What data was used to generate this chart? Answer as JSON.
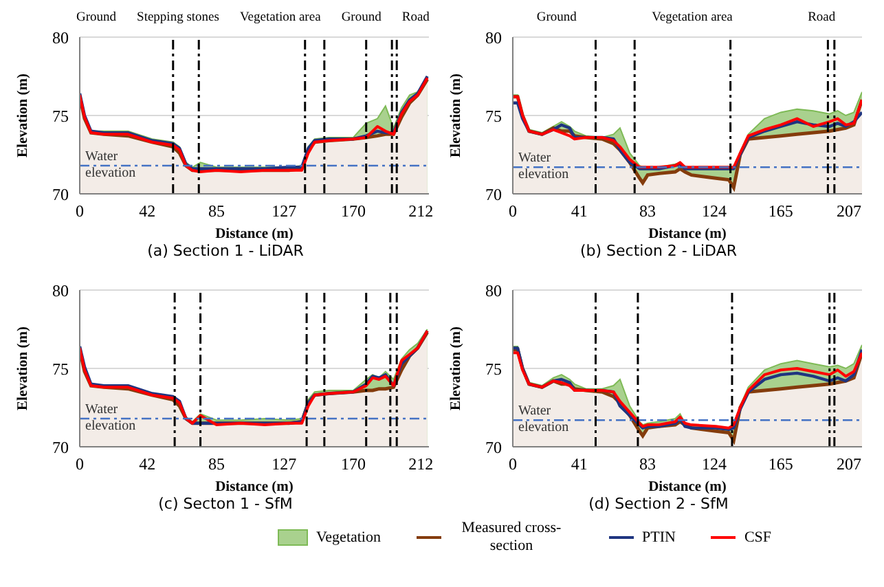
{
  "chart_data": [
    {
      "type": "line",
      "title": "(a) Section 1 - LiDAR",
      "xlabel": "Distance (m)",
      "ylabel": "Elevation (m)",
      "xlim": [
        0,
        217
      ],
      "xticks": [
        0,
        42,
        85,
        127,
        170,
        212
      ],
      "ylim": [
        70,
        80
      ],
      "yticks": [
        70,
        75,
        80
      ],
      "grid": "y",
      "x": [
        0,
        3,
        7,
        15,
        30,
        45,
        58,
        62,
        66,
        70,
        75,
        85,
        100,
        115,
        130,
        138,
        142,
        146,
        155,
        170,
        178,
        185,
        190,
        195,
        200,
        205,
        210,
        216
      ],
      "series": [
        {
          "type": "area",
          "color": "#a9d18e",
          "values": [
            76.4,
            75.0,
            74.0,
            74.0,
            74.0,
            73.5,
            73.3,
            73.0,
            72.0,
            71.7,
            72.0,
            71.7,
            71.7,
            71.7,
            71.7,
            71.8,
            73.0,
            73.5,
            73.6,
            73.6,
            74.5,
            74.8,
            75.6,
            74.2,
            75.5,
            76.3,
            76.5,
            77.5
          ]
        },
        {
          "type": "area",
          "color": "#843c0c",
          "values": [
            76.2,
            74.8,
            73.9,
            73.8,
            73.7,
            73.3,
            73.0,
            72.6,
            71.8,
            71.5,
            71.5,
            71.5,
            71.5,
            71.5,
            71.5,
            71.6,
            72.8,
            73.3,
            73.4,
            73.5,
            73.6,
            73.7,
            73.8,
            73.8,
            74.9,
            75.8,
            76.3,
            77.3
          ]
        },
        {
          "type": "line",
          "color": "#1f3580",
          "values": [
            76.4,
            75.0,
            74.0,
            73.9,
            73.9,
            73.4,
            73.2,
            72.9,
            71.9,
            71.6,
            71.6,
            71.6,
            71.6,
            71.6,
            71.7,
            71.7,
            72.9,
            73.4,
            73.5,
            73.5,
            73.7,
            74.0,
            73.9,
            73.9,
            75.2,
            76.0,
            76.4,
            77.5
          ]
        },
        {
          "type": "line",
          "color": "#ff0000",
          "values": [
            76.3,
            74.9,
            73.9,
            73.8,
            73.8,
            73.3,
            73.1,
            72.8,
            71.8,
            71.5,
            71.4,
            71.5,
            71.4,
            71.5,
            71.5,
            71.5,
            72.6,
            73.3,
            73.4,
            73.5,
            73.6,
            74.3,
            74.0,
            73.8,
            75.1,
            75.9,
            76.3,
            77.4
          ]
        }
      ],
      "ref_lines": [
        {
          "axis": "y",
          "value": 71.8,
          "label": "Water elevation",
          "color": "#4472c4",
          "line_style": "dashed"
        },
        {
          "axis": "x",
          "value": 58,
          "color": "#000000",
          "line_style": "dashed"
        },
        {
          "axis": "x",
          "value": 74,
          "color": "#000000",
          "line_style": "dashed"
        },
        {
          "axis": "x",
          "value": 140,
          "color": "#000000",
          "line_style": "dashed"
        },
        {
          "axis": "x",
          "value": 152,
          "color": "#000000",
          "line_style": "dashed"
        },
        {
          "axis": "x",
          "value": 178,
          "color": "#000000",
          "line_style": "dashed"
        },
        {
          "axis": "x",
          "value": 194,
          "color": "#000000",
          "line_style": "dashed"
        },
        {
          "axis": "x",
          "value": 197,
          "color": "#000000",
          "line_style": "dashed"
        }
      ],
      "annotations": [
        "Ground",
        "Stepping stones",
        "Vegetation area",
        "Ground",
        "Road"
      ]
    },
    {
      "type": "line",
      "title": "(b) Section 2 - LiDAR",
      "xlabel": "Distance (m)",
      "ylabel": "Elevation (m)",
      "xlim": [
        0,
        215
      ],
      "xticks": [
        0,
        41,
        83,
        124,
        165,
        207
      ],
      "ylim": [
        70,
        80
      ],
      "yticks": [
        70,
        75,
        80
      ],
      "grid": "y",
      "x": [
        0,
        3,
        6,
        10,
        18,
        25,
        30,
        35,
        38,
        45,
        55,
        62,
        66,
        72,
        78,
        80,
        83,
        90,
        100,
        103,
        106,
        110,
        125,
        133,
        136,
        140,
        145,
        155,
        165,
        175,
        185,
        195,
        200,
        205,
        210,
        215
      ],
      "series": [
        {
          "type": "area",
          "color": "#a9d18e",
          "values": [
            76.3,
            76.3,
            75.0,
            74.1,
            73.9,
            74.3,
            74.6,
            74.3,
            74.0,
            73.7,
            73.6,
            73.8,
            74.2,
            72.6,
            71.8,
            71.7,
            71.7,
            71.7,
            71.9,
            72.0,
            71.7,
            71.7,
            71.7,
            71.7,
            71.7,
            72.7,
            73.8,
            74.8,
            75.2,
            75.4,
            75.3,
            75.1,
            75.3,
            75.0,
            75.2,
            76.5
          ]
        },
        {
          "type": "area",
          "color": "#843c0c",
          "values": [
            76.2,
            76.2,
            75.0,
            74.0,
            73.8,
            74.2,
            74.0,
            74.0,
            73.7,
            73.6,
            73.5,
            73.2,
            72.8,
            72.0,
            71.0,
            70.7,
            71.2,
            71.3,
            71.4,
            71.6,
            71.4,
            71.2,
            71.0,
            70.9,
            70.4,
            72.5,
            73.5,
            73.6,
            73.7,
            73.8,
            73.9,
            74.0,
            74.1,
            74.2,
            74.4,
            76.0
          ]
        },
        {
          "type": "line",
          "color": "#1f3580",
          "values": [
            75.8,
            75.8,
            74.8,
            74.0,
            73.8,
            74.1,
            74.4,
            74.2,
            73.6,
            73.6,
            73.6,
            73.5,
            72.8,
            72.0,
            71.6,
            71.6,
            71.6,
            71.6,
            71.8,
            71.9,
            71.6,
            71.6,
            71.6,
            71.6,
            71.6,
            72.5,
            73.6,
            74.0,
            74.3,
            74.6,
            74.4,
            74.3,
            74.5,
            74.3,
            74.6,
            75.2
          ]
        },
        {
          "type": "line",
          "color": "#ff0000",
          "values": [
            76.2,
            76.2,
            75.0,
            74.0,
            73.8,
            74.1,
            73.9,
            73.7,
            73.5,
            73.6,
            73.6,
            73.4,
            73.0,
            72.2,
            71.7,
            71.7,
            71.7,
            71.7,
            71.8,
            72.0,
            71.7,
            71.7,
            71.7,
            71.7,
            71.7,
            72.6,
            73.7,
            74.1,
            74.4,
            74.8,
            74.3,
            74.6,
            74.8,
            74.4,
            74.5,
            76.0
          ]
        }
      ],
      "ref_lines": [
        {
          "axis": "y",
          "value": 71.7,
          "label": "Water elevation",
          "color": "#4472c4",
          "line_style": "dashed"
        },
        {
          "axis": "x",
          "value": 51,
          "color": "#000000",
          "line_style": "dashed"
        },
        {
          "axis": "x",
          "value": 75,
          "color": "#000000",
          "line_style": "dashed"
        },
        {
          "axis": "x",
          "value": 134,
          "color": "#000000",
          "line_style": "dashed"
        },
        {
          "axis": "x",
          "value": 194,
          "color": "#000000",
          "line_style": "dashed"
        },
        {
          "axis": "x",
          "value": 198,
          "color": "#000000",
          "line_style": "dashed"
        }
      ],
      "annotations": [
        "Ground",
        "Vegetation area",
        "Road"
      ]
    },
    {
      "type": "line",
      "title": "(c) Secton 1 - SfM",
      "xlabel": "Distance (m)",
      "ylabel": "Elevation (m)",
      "xlim": [
        0,
        217
      ],
      "xticks": [
        0,
        42,
        85,
        127,
        170,
        212
      ],
      "ylim": [
        70,
        80
      ],
      "yticks": [
        70,
        75,
        80
      ],
      "grid": "y",
      "x": [
        0,
        3,
        7,
        15,
        30,
        45,
        58,
        62,
        66,
        70,
        75,
        85,
        100,
        115,
        130,
        138,
        142,
        146,
        155,
        170,
        178,
        182,
        186,
        190,
        195,
        200,
        205,
        210,
        216
      ],
      "series": [
        {
          "type": "area",
          "color": "#a9d18e",
          "values": [
            76.3,
            74.9,
            74.0,
            73.9,
            73.9,
            73.4,
            73.2,
            72.9,
            71.9,
            71.6,
            72.1,
            71.7,
            71.7,
            71.8,
            71.7,
            71.8,
            73.0,
            73.5,
            73.6,
            73.6,
            74.3,
            74.6,
            74.4,
            74.8,
            74.3,
            75.6,
            76.2,
            76.6,
            77.5
          ]
        },
        {
          "type": "area",
          "color": "#843c0c",
          "values": [
            76.2,
            74.8,
            73.9,
            73.8,
            73.7,
            73.3,
            73.0,
            72.6,
            71.8,
            71.5,
            71.5,
            71.5,
            71.5,
            71.5,
            71.5,
            71.6,
            72.8,
            73.3,
            73.4,
            73.5,
            73.6,
            73.6,
            73.7,
            73.7,
            73.8,
            74.9,
            75.8,
            76.3,
            77.3
          ]
        },
        {
          "type": "line",
          "color": "#1f3580",
          "values": [
            76.4,
            75.1,
            74.0,
            73.9,
            73.9,
            73.4,
            73.2,
            72.9,
            71.8,
            71.5,
            71.5,
            71.5,
            71.5,
            71.5,
            71.5,
            71.6,
            72.8,
            73.3,
            73.4,
            73.5,
            74.0,
            74.5,
            74.4,
            74.6,
            73.9,
            75.3,
            75.8,
            76.3,
            77.4
          ]
        },
        {
          "type": "line",
          "color": "#ff0000",
          "values": [
            76.3,
            74.9,
            73.9,
            73.8,
            73.8,
            73.3,
            73.1,
            72.8,
            71.8,
            71.5,
            72.0,
            71.4,
            71.5,
            71.4,
            71.5,
            71.5,
            72.6,
            73.3,
            73.4,
            73.5,
            73.9,
            74.4,
            74.3,
            74.5,
            73.9,
            75.5,
            75.9,
            76.3,
            77.4
          ]
        }
      ],
      "ref_lines": [
        {
          "axis": "y",
          "value": 71.8,
          "label": "Water elevation",
          "color": "#4472c4",
          "line_style": "dashed"
        },
        {
          "axis": "x",
          "value": 59,
          "color": "#000000",
          "line_style": "dashed"
        },
        {
          "axis": "x",
          "value": 75,
          "color": "#000000",
          "line_style": "dashed"
        },
        {
          "axis": "x",
          "value": 141,
          "color": "#000000",
          "line_style": "dashed"
        },
        {
          "axis": "x",
          "value": 152,
          "color": "#000000",
          "line_style": "dashed"
        },
        {
          "axis": "x",
          "value": 178,
          "color": "#000000",
          "line_style": "dashed"
        },
        {
          "axis": "x",
          "value": 193,
          "color": "#000000",
          "line_style": "dashed"
        },
        {
          "axis": "x",
          "value": 197,
          "color": "#000000",
          "line_style": "dashed"
        }
      ]
    },
    {
      "type": "line",
      "title": "(d) Section 2 - SfM",
      "xlabel": "Distance (m)",
      "ylabel": "Elevation (m)",
      "xlim": [
        0,
        215
      ],
      "xticks": [
        0,
        41,
        83,
        124,
        165,
        207
      ],
      "ylim": [
        70,
        80
      ],
      "yticks": [
        70,
        75,
        80
      ],
      "grid": "y",
      "legend": "bottom",
      "x": [
        0,
        3,
        6,
        10,
        18,
        25,
        30,
        35,
        38,
        45,
        55,
        62,
        66,
        72,
        78,
        80,
        83,
        90,
        100,
        103,
        106,
        110,
        125,
        133,
        136,
        140,
        145,
        155,
        165,
        175,
        185,
        195,
        200,
        205,
        210,
        215
      ],
      "series": [
        {
          "name": "Vegetation",
          "type": "area",
          "color": "#a9d18e",
          "values": [
            76.4,
            76.4,
            75.0,
            74.1,
            73.9,
            74.4,
            74.6,
            74.3,
            74.0,
            73.7,
            73.7,
            73.9,
            74.3,
            72.6,
            71.6,
            71.4,
            71.5,
            71.6,
            71.8,
            72.1,
            71.5,
            71.4,
            71.3,
            71.2,
            71.4,
            72.6,
            73.8,
            74.9,
            75.3,
            75.5,
            75.3,
            75.1,
            75.2,
            75.0,
            75.3,
            76.5
          ]
        },
        {
          "name": "Measured cross-section",
          "type": "area",
          "color": "#843c0c",
          "values": [
            76.2,
            76.2,
            75.0,
            74.0,
            73.8,
            74.2,
            74.0,
            74.0,
            73.7,
            73.6,
            73.5,
            73.2,
            72.8,
            72.0,
            71.0,
            70.7,
            71.2,
            71.3,
            71.4,
            71.6,
            71.4,
            71.2,
            71.0,
            70.9,
            70.4,
            72.5,
            73.5,
            73.6,
            73.7,
            73.8,
            73.9,
            74.0,
            74.1,
            74.2,
            74.4,
            76.0
          ]
        },
        {
          "name": "PTIN",
          "type": "line",
          "color": "#1f3580",
          "values": [
            76.3,
            76.3,
            75.0,
            74.0,
            73.8,
            74.2,
            74.3,
            74.1,
            73.6,
            73.6,
            73.6,
            73.5,
            72.6,
            72.0,
            71.4,
            71.2,
            71.3,
            71.3,
            71.5,
            71.8,
            71.3,
            71.2,
            71.2,
            71.1,
            71.2,
            72.4,
            73.5,
            74.3,
            74.6,
            74.7,
            74.5,
            74.2,
            74.4,
            74.2,
            74.6,
            76.2
          ]
        },
        {
          "name": "CSF",
          "type": "line",
          "color": "#ff0000",
          "values": [
            76.0,
            76.0,
            74.9,
            74.0,
            73.8,
            74.2,
            74.1,
            73.9,
            73.6,
            73.6,
            73.6,
            73.5,
            72.9,
            72.2,
            71.5,
            71.3,
            71.4,
            71.4,
            71.6,
            71.9,
            71.5,
            71.4,
            71.3,
            71.2,
            71.4,
            72.5,
            73.6,
            74.6,
            74.9,
            75.0,
            74.8,
            74.6,
            74.9,
            74.5,
            74.8,
            76.0
          ]
        }
      ],
      "ref_lines": [
        {
          "axis": "y",
          "value": 71.7,
          "label": "Water elevation",
          "color": "#4472c4",
          "line_style": "dashed"
        },
        {
          "axis": "x",
          "value": 51,
          "color": "#000000",
          "line_style": "dashed"
        },
        {
          "axis": "x",
          "value": 77,
          "color": "#000000",
          "line_style": "dashed"
        },
        {
          "axis": "x",
          "value": 135,
          "color": "#000000",
          "line_style": "dashed"
        },
        {
          "axis": "x",
          "value": 195,
          "color": "#000000",
          "line_style": "dashed"
        },
        {
          "axis": "x",
          "value": 198,
          "color": "#000000",
          "line_style": "dashed"
        }
      ]
    }
  ]
}
